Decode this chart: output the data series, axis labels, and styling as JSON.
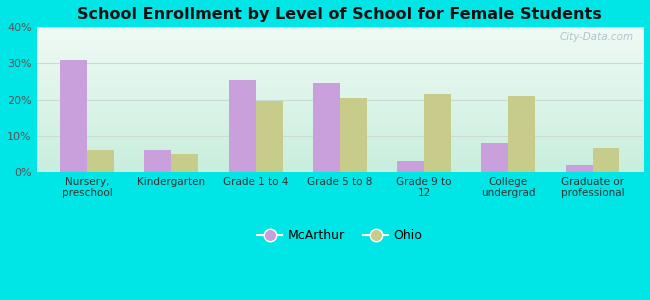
{
  "title": "School Enrollment by Level of School for Female Students",
  "categories": [
    "Nursery,\npreschool",
    "Kindergarten",
    "Grade 1 to 4",
    "Grade 5 to 8",
    "Grade 9 to\n12",
    "College\nundergrad",
    "Graduate or\nprofessional"
  ],
  "mcarthur": [
    31.0,
    6.0,
    25.5,
    24.5,
    3.0,
    8.0,
    2.0
  ],
  "ohio": [
    6.0,
    5.0,
    19.5,
    20.5,
    21.5,
    21.0,
    6.5
  ],
  "mcarthur_color": "#c9a0dc",
  "ohio_color": "#c8cc8a",
  "background_outer": "#00e5e5",
  "background_inner_top": "#f0faf5",
  "background_inner_bottom": "#c8eedd",
  "ylim": [
    0,
    40
  ],
  "yticks": [
    0,
    10,
    20,
    30,
    40
  ],
  "yticklabels": [
    "0%",
    "10%",
    "20%",
    "30%",
    "40%"
  ],
  "grid_color": "#c8ddd0",
  "legend_label_mcarthur": "McArthur",
  "legend_label_ohio": "Ohio",
  "watermark": "City-Data.com",
  "bar_width": 0.32
}
